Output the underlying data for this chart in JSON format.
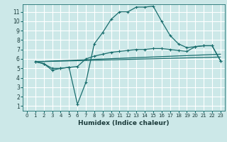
{
  "xlabel": "Humidex (Indice chaleur)",
  "bg_color": "#cce8e8",
  "grid_color": "#ffffff",
  "line_color": "#1a6e6e",
  "xlim": [
    -0.5,
    23.5
  ],
  "ylim": [
    0.5,
    11.8
  ],
  "xticks": [
    0,
    1,
    2,
    3,
    4,
    5,
    6,
    7,
    8,
    9,
    10,
    11,
    12,
    13,
    14,
    15,
    16,
    17,
    18,
    19,
    20,
    21,
    22,
    23
  ],
  "yticks": [
    1,
    2,
    3,
    4,
    5,
    6,
    7,
    8,
    9,
    10,
    11
  ],
  "line1_x": [
    1,
    2,
    3,
    4,
    5,
    6,
    7,
    8,
    9,
    10,
    11,
    12,
    13,
    14,
    15,
    16,
    17,
    18,
    19,
    20,
    21,
    22,
    23
  ],
  "line1_y": [
    5.7,
    5.5,
    4.8,
    5.0,
    5.1,
    1.2,
    3.5,
    7.6,
    8.8,
    10.2,
    11.0,
    11.0,
    11.5,
    11.5,
    11.6,
    10.0,
    8.5,
    7.6,
    7.2,
    7.3,
    7.4,
    7.4,
    5.8
  ],
  "line2_x": [
    1,
    2,
    3,
    4,
    5,
    6,
    7,
    8,
    9,
    10,
    11,
    12,
    13,
    14,
    15,
    16,
    17,
    18,
    19,
    20,
    21,
    22,
    23
  ],
  "line2_y": [
    5.7,
    5.5,
    5.0,
    5.0,
    5.1,
    5.2,
    6.0,
    6.3,
    6.5,
    6.7,
    6.8,
    6.9,
    7.0,
    7.0,
    7.1,
    7.1,
    7.0,
    6.9,
    6.8,
    7.3,
    7.4,
    7.4,
    5.8
  ],
  "line3_x": [
    1,
    23
  ],
  "line3_y": [
    5.7,
    6.5
  ],
  "line4_x": [
    1,
    23
  ],
  "line4_y": [
    5.7,
    6.2
  ]
}
